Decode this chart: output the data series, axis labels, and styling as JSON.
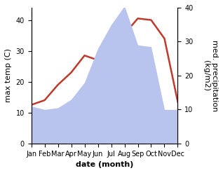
{
  "months": [
    "Jan",
    "Feb",
    "Mar",
    "Apr",
    "May",
    "Jun",
    "Jul",
    "Aug",
    "Sep",
    "Oct",
    "Nov",
    "Dec"
  ],
  "temperature": [
    12.5,
    14.0,
    19.0,
    23.0,
    28.5,
    27.0,
    30.0,
    35.5,
    40.5,
    40.0,
    34.0,
    13.5
  ],
  "precipitation": [
    11.0,
    10.0,
    10.5,
    13.0,
    18.0,
    28.0,
    35.0,
    40.5,
    29.0,
    28.5,
    10.0,
    10.0
  ],
  "temp_color": "#c0392b",
  "precip_fill_color": "#b8c4ee",
  "ylabel_left": "max temp (C)",
  "ylabel_right": "med. precipitation\n(kg/m2)",
  "xlabel": "date (month)",
  "ylim_left": [
    0,
    44
  ],
  "ylim_right": [
    0,
    40
  ],
  "yticks_left": [
    0,
    10,
    20,
    30,
    40
  ],
  "yticks_right": [
    0,
    10,
    20,
    30,
    40
  ],
  "label_fontsize": 8,
  "tick_fontsize": 7
}
